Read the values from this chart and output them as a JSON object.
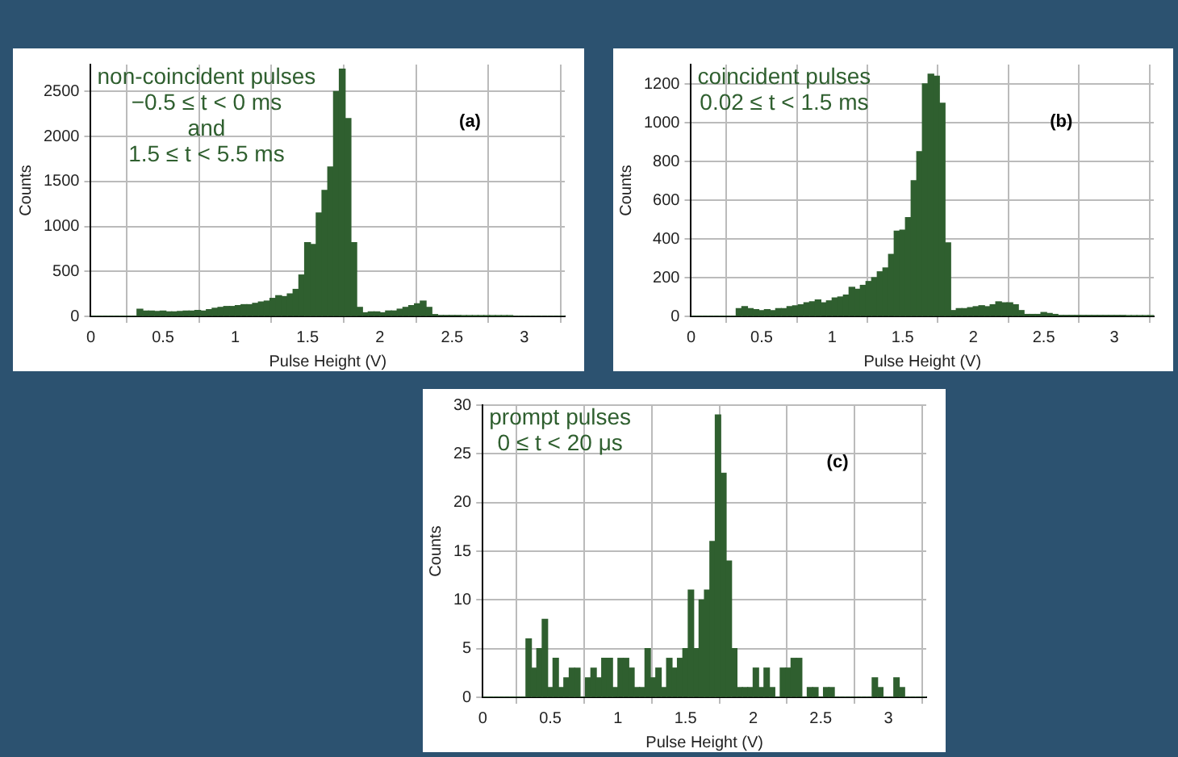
{
  "chart_data": [
    {
      "type": "histogram",
      "xlabel": "Pulse Height (V)",
      "ylabel": "Counts",
      "annotations": [
        "non-coincident pulses",
        "−0.5 ≤ t < 0 ms",
        "and",
        "1.5 ≤ t < 5.5 ms",
        "(a)"
      ],
      "color": "#2f5f2f",
      "grid": true,
      "legend": false,
      "xlim": [
        0,
        3.28
      ],
      "xticks": [
        0,
        0.5,
        1,
        1.5,
        2,
        2.5,
        3
      ],
      "ylim": [
        0,
        2800
      ],
      "yticks": [
        0,
        500,
        1000,
        1500,
        2000,
        2500
      ],
      "bins": [
        0,
        0.04,
        0.08,
        0.12,
        0.16,
        0.2,
        0.24,
        0.28,
        0.32,
        0.36,
        0.4,
        0.44,
        0.48,
        0.52,
        0.56,
        0.6,
        0.64,
        0.68,
        0.72,
        0.76,
        0.8,
        0.84,
        0.88,
        0.92,
        0.96,
        1,
        1.04,
        1.08,
        1.12,
        1.16,
        1.2,
        1.24,
        1.28,
        1.32,
        1.36,
        1.4,
        1.44,
        1.48,
        1.52,
        1.56,
        1.6,
        1.64,
        1.68,
        1.72,
        1.76,
        1.8,
        1.84,
        1.88,
        1.92,
        1.96,
        2,
        2.04,
        2.08,
        2.12,
        2.16,
        2.2,
        2.24,
        2.28,
        2.32,
        2.36,
        2.4,
        2.44,
        2.48,
        2.52,
        2.56,
        2.6,
        2.64,
        2.68,
        2.72,
        2.76,
        2.8,
        2.84,
        2.88,
        2.92,
        2.96,
        3,
        3.04,
        3.08,
        3.12,
        3.16,
        3.2,
        3.24,
        3.28
      ],
      "values": [
        0,
        0,
        0,
        0,
        0,
        0,
        0,
        0,
        80,
        60,
        60,
        55,
        60,
        50,
        50,
        55,
        60,
        60,
        65,
        60,
        75,
        90,
        100,
        110,
        110,
        120,
        130,
        130,
        145,
        160,
        170,
        200,
        230,
        220,
        250,
        300,
        460,
        820,
        800,
        1150,
        1400,
        1660,
        2500,
        2750,
        2200,
        820,
        100,
        40,
        50,
        50,
        40,
        60,
        60,
        80,
        100,
        120,
        140,
        170,
        100,
        20,
        10,
        10,
        10,
        10,
        5,
        5,
        5,
        5,
        5,
        3,
        3,
        3,
        3,
        0,
        0,
        0,
        0,
        0,
        0,
        0,
        0,
        0
      ]
    },
    {
      "type": "histogram",
      "xlabel": "Pulse Height (V)",
      "ylabel": "Counts",
      "annotations": [
        "coincident pulses",
        "0.02 ≤ t < 1.5 ms",
        "(b)"
      ],
      "color": "#2f5f2f",
      "grid": true,
      "legend": false,
      "xlim": [
        0,
        3.28
      ],
      "xticks": [
        0,
        0.5,
        1,
        1.5,
        2,
        2.5,
        3
      ],
      "ylim": [
        0,
        1300
      ],
      "yticks": [
        0,
        200,
        400,
        600,
        800,
        1000,
        1200
      ],
      "bins": [
        0,
        0.04,
        0.08,
        0.12,
        0.16,
        0.2,
        0.24,
        0.28,
        0.32,
        0.36,
        0.4,
        0.44,
        0.48,
        0.52,
        0.56,
        0.6,
        0.64,
        0.68,
        0.72,
        0.76,
        0.8,
        0.84,
        0.88,
        0.92,
        0.96,
        1,
        1.04,
        1.08,
        1.12,
        1.16,
        1.2,
        1.24,
        1.28,
        1.32,
        1.36,
        1.4,
        1.44,
        1.48,
        1.52,
        1.56,
        1.6,
        1.64,
        1.68,
        1.72,
        1.76,
        1.8,
        1.84,
        1.88,
        1.92,
        1.96,
        2,
        2.04,
        2.08,
        2.12,
        2.16,
        2.2,
        2.24,
        2.28,
        2.32,
        2.36,
        2.4,
        2.44,
        2.48,
        2.52,
        2.56,
        2.6,
        2.64,
        2.68,
        2.72,
        2.76,
        2.8,
        2.84,
        2.88,
        2.92,
        2.96,
        3,
        3.04,
        3.08,
        3.12,
        3.16,
        3.2,
        3.24,
        3.28
      ],
      "values": [
        0,
        0,
        0,
        0,
        0,
        0,
        0,
        0,
        40,
        50,
        40,
        35,
        30,
        35,
        30,
        40,
        40,
        50,
        55,
        60,
        70,
        75,
        85,
        70,
        80,
        95,
        100,
        110,
        150,
        140,
        160,
        180,
        200,
        230,
        250,
        320,
        440,
        445,
        510,
        700,
        850,
        1200,
        1250,
        1240,
        1100,
        380,
        30,
        40,
        40,
        45,
        50,
        55,
        50,
        60,
        75,
        70,
        70,
        60,
        30,
        10,
        10,
        10,
        20,
        15,
        10,
        5,
        5,
        5,
        5,
        5,
        5,
        5,
        5,
        5,
        5,
        5,
        5,
        3,
        3,
        3,
        3,
        3
      ]
    },
    {
      "type": "histogram",
      "xlabel": "Pulse Height (V)",
      "ylabel": "Counts",
      "annotations": [
        "prompt pulses",
        "0 ≤ t < 20 μs",
        "(c)"
      ],
      "color": "#2f5f2f",
      "grid": true,
      "legend": false,
      "xlim": [
        0,
        3.28
      ],
      "xticks": [
        0,
        0.5,
        1,
        1.5,
        2,
        2.5,
        3
      ],
      "ylim": [
        0,
        30
      ],
      "yticks": [
        0,
        5,
        10,
        15,
        20,
        25,
        30
      ],
      "bins": [
        0,
        0.04,
        0.08,
        0.12,
        0.16,
        0.2,
        0.24,
        0.28,
        0.32,
        0.36,
        0.4,
        0.44,
        0.48,
        0.52,
        0.56,
        0.6,
        0.64,
        0.68,
        0.72,
        0.76,
        0.8,
        0.84,
        0.88,
        0.92,
        0.96,
        1,
        1.04,
        1.08,
        1.12,
        1.16,
        1.2,
        1.24,
        1.28,
        1.32,
        1.36,
        1.4,
        1.44,
        1.48,
        1.52,
        1.56,
        1.6,
        1.64,
        1.68,
        1.72,
        1.76,
        1.8,
        1.84,
        1.88,
        1.92,
        1.96,
        2,
        2.04,
        2.08,
        2.12,
        2.16,
        2.2,
        2.24,
        2.28,
        2.32,
        2.36,
        2.4,
        2.44,
        2.48,
        2.52,
        2.56,
        2.6,
        2.64,
        2.68,
        2.72,
        2.76,
        2.8,
        2.84,
        2.88,
        2.92,
        2.96,
        3,
        3.04,
        3.08,
        3.12,
        3.16,
        3.2,
        3.24,
        3.28
      ],
      "values": [
        0,
        0,
        0,
        0,
        0,
        0,
        0,
        0,
        6,
        3,
        5,
        8,
        1,
        4,
        1,
        2,
        3,
        3,
        0,
        2,
        3,
        2,
        4,
        4,
        1,
        4,
        4,
        3,
        1,
        1,
        5,
        2,
        3,
        1,
        4,
        3,
        4,
        5,
        11,
        5,
        10,
        11,
        16,
        29,
        23,
        14,
        5,
        1,
        1,
        1,
        3,
        1,
        3,
        1,
        0,
        3,
        3,
        4,
        4,
        0,
        1,
        1,
        0,
        1,
        1,
        0,
        0,
        0,
        0,
        0,
        0,
        0,
        2,
        1,
        0,
        0,
        2,
        1,
        0,
        0,
        0,
        0
      ]
    }
  ]
}
